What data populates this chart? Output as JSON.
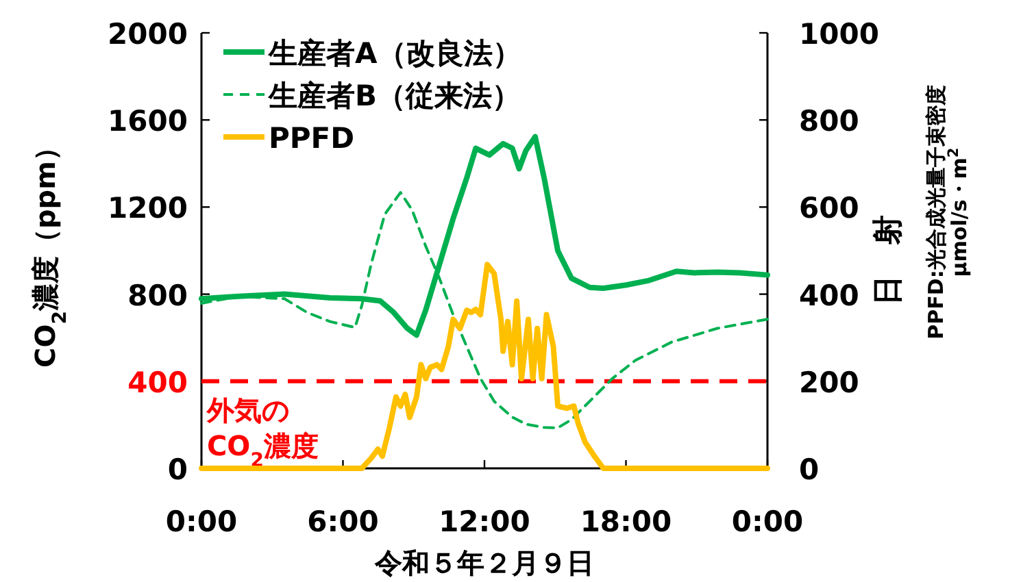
{
  "chart_data": {
    "type": "line",
    "xlabel": "令和５年２月９日",
    "ylabel": "CO$_{2}$濃度（ppm）",
    "y2label": "日　射\nPPFD:光合成光量子束密度\nμmol/s・m$^{2}$",
    "xlim": [
      0,
      24
    ],
    "xticks": [
      {
        "value": 0,
        "label": "0:00"
      },
      {
        "value": 6,
        "label": "6:00"
      },
      {
        "value": 12,
        "label": "12:00"
      },
      {
        "value": 18,
        "label": "18:00"
      },
      {
        "value": 24,
        "label": "0:00"
      }
    ],
    "ylim": [
      0,
      2000
    ],
    "yticks": [
      0,
      400,
      800,
      1200,
      1600,
      2000
    ],
    "y2lim": [
      0,
      1000
    ],
    "y2ticks": [
      0,
      200,
      400,
      600,
      800,
      1000
    ],
    "legend": "top left",
    "grid": false,
    "marker": "none",
    "ref_lines": [
      {
        "axis": "y",
        "value": 400,
        "label": "外気の\nCO$_{2}$濃度",
        "color": "#ff0000",
        "line_style": "dashed"
      }
    ],
    "series": [
      {
        "name": "生産者A（改良法）",
        "color": "#00b050",
        "line_style": "solid",
        "x": [
          0,
          1.58,
          3.52,
          5.45,
          6.8,
          7.58,
          8.15,
          8.73,
          9.12,
          9.51,
          10.09,
          10.67,
          11.25,
          11.63,
          12.21,
          12.79,
          13.18,
          13.47,
          13.76,
          14.15,
          14.53,
          15.11,
          15.69,
          16.46,
          17.04,
          18.01,
          18.98,
          20.14,
          20.91,
          21.88,
          22.84,
          24
        ],
        "values": [
          779,
          790,
          800,
          783,
          779,
          769,
          716,
          643,
          612,
          727,
          936,
          1146,
          1334,
          1470,
          1439,
          1491,
          1470,
          1376,
          1460,
          1523,
          1334,
          999,
          873,
          831,
          827,
          842,
          863,
          905,
          898,
          901,
          898,
          888
        ]
      },
      {
        "name": "生産者B（従来法）",
        "color": "#00b050",
        "line_style": "dashed",
        "x": [
          0,
          1.58,
          3.52,
          4.48,
          5.45,
          6.51,
          6.8,
          7.19,
          7.77,
          8.44,
          8.93,
          9.51,
          10.09,
          10.67,
          11.25,
          11.83,
          12.41,
          13.18,
          13.76,
          14.53,
          15.11,
          15.69,
          16.46,
          17.43,
          18.4,
          19.94,
          21.88,
          24
        ],
        "values": [
          758,
          790,
          779,
          716,
          674,
          647,
          748,
          936,
          1166,
          1267,
          1187,
          1020,
          873,
          706,
          559,
          413,
          308,
          235,
          203,
          188,
          186,
          224,
          308,
          413,
          496,
          580,
          643,
          685
        ]
      },
      {
        "name": "PPFD",
        "color": "#ffc000",
        "line_style": "solid",
        "axis": "y2",
        "x": [
          0,
          6.8,
          7.19,
          7.48,
          7.67,
          7.96,
          8.25,
          8.44,
          8.64,
          8.83,
          9.12,
          9.31,
          9.51,
          9.7,
          9.99,
          10.18,
          10.47,
          10.67,
          10.96,
          11.25,
          11.44,
          11.63,
          11.83,
          12.12,
          12.41,
          12.7,
          12.79,
          12.99,
          13.18,
          13.37,
          13.57,
          13.86,
          14.05,
          14.24,
          14.43,
          14.63,
          14.92,
          15.11,
          15.5,
          15.79,
          15.98,
          16.27,
          16.66,
          17.04,
          24
        ],
        "values": [
          0,
          0,
          23,
          44,
          28,
          91,
          164,
          143,
          170,
          117,
          164,
          238,
          206,
          232,
          238,
          227,
          280,
          342,
          321,
          363,
          358,
          365,
          353,
          468,
          447,
          342,
          269,
          337,
          238,
          384,
          206,
          342,
          206,
          321,
          206,
          353,
          280,
          143,
          138,
          143,
          102,
          60,
          28,
          0,
          0
        ]
      }
    ]
  }
}
